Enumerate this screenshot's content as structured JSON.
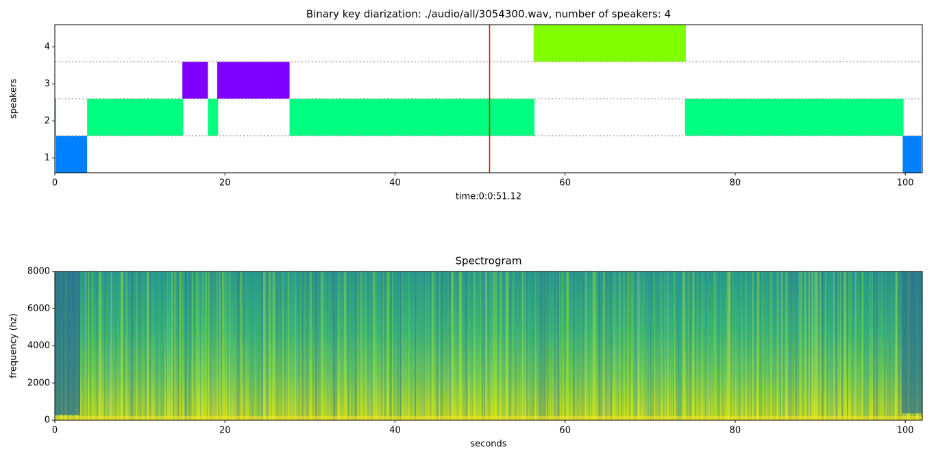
{
  "chart_data": [
    {
      "type": "broken_barh",
      "title": "Binary key diarization: ./audio/all/3054300.wav, number of speakers: 4",
      "x_label": "time:0:0:51.12",
      "y_label": "speakers",
      "xlim": [
        0,
        102.0
      ],
      "ylim": [
        0.6,
        4.6
      ],
      "xticks": [
        0,
        20,
        40,
        60,
        80,
        100
      ],
      "yticks": [
        1,
        2,
        3,
        4
      ],
      "separators": [
        1.6,
        2.6,
        3.6
      ],
      "marker": 51.12,
      "marker_color": "#ff0000",
      "series": [
        {
          "speaker": 1,
          "color": "#0080ff",
          "segments": [
            [
              0.1,
              3.8
            ],
            [
              99.7,
              101.9
            ]
          ]
        },
        {
          "speaker": 2,
          "color": "#00ff80",
          "segments": [
            [
              0,
              0.15
            ],
            [
              3.8,
              15.1
            ],
            [
              18.0,
              19.2
            ],
            [
              27.6,
              29.2
            ],
            [
              29.2,
              40.7
            ],
            [
              40.7,
              51.0
            ],
            [
              51.0,
              56.4
            ],
            [
              74.1,
              99.8
            ]
          ]
        },
        {
          "speaker": 3,
          "color": "#8000ff",
          "segments": [
            [
              15.0,
              18.0
            ],
            [
              19.1,
              27.6
            ]
          ]
        },
        {
          "speaker": 4,
          "color": "#80ff00",
          "segments": [
            [
              56.3,
              74.2
            ]
          ]
        }
      ]
    },
    {
      "type": "spectrogram",
      "title": "Spectrogram",
      "x_label": "seconds",
      "y_label": "frequency (hz)",
      "xlim": [
        0,
        102.0
      ],
      "ylim": [
        0,
        8000
      ],
      "xticks": [
        0,
        20,
        40,
        60,
        80,
        100
      ],
      "yticks": [
        0,
        2000,
        4000,
        6000,
        8000
      ]
    }
  ]
}
